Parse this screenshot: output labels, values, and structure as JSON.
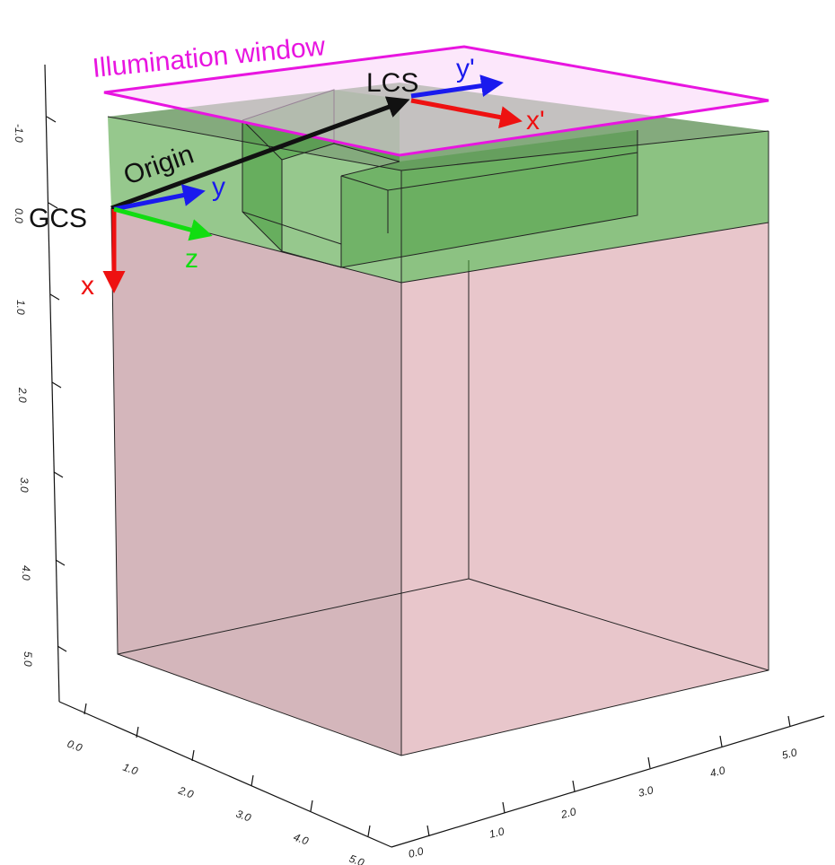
{
  "labels": {
    "illumination": "Illumination window",
    "lcs": "LCS",
    "gcs": "GCS",
    "origin": "Origin",
    "x": "x",
    "y": "y",
    "z": "z",
    "x_prime": "x'",
    "y_prime": "y'"
  },
  "axes": {
    "vertical_ticks": [
      "-1.0",
      "0.0",
      "1.0",
      "2.0",
      "3.0",
      "4.0",
      "5.0"
    ],
    "left_depth_ticks": [
      "0.0",
      "1.0",
      "2.0",
      "3.0",
      "4.0",
      "5.0"
    ],
    "right_depth_ticks": [
      "0.0",
      "1.0",
      "2.0",
      "3.0",
      "4.0",
      "5.0"
    ]
  },
  "colors": {
    "illumination": "#e815e0",
    "x_axis": "#ee1111",
    "y_axis": "#1a1aee",
    "z_axis": "#11dd11",
    "origin_vector": "#111111",
    "substrate_fill": "#d9a0a8",
    "layer_fill": "#3f9a2f",
    "window_fill": "#f9d4f7"
  }
}
